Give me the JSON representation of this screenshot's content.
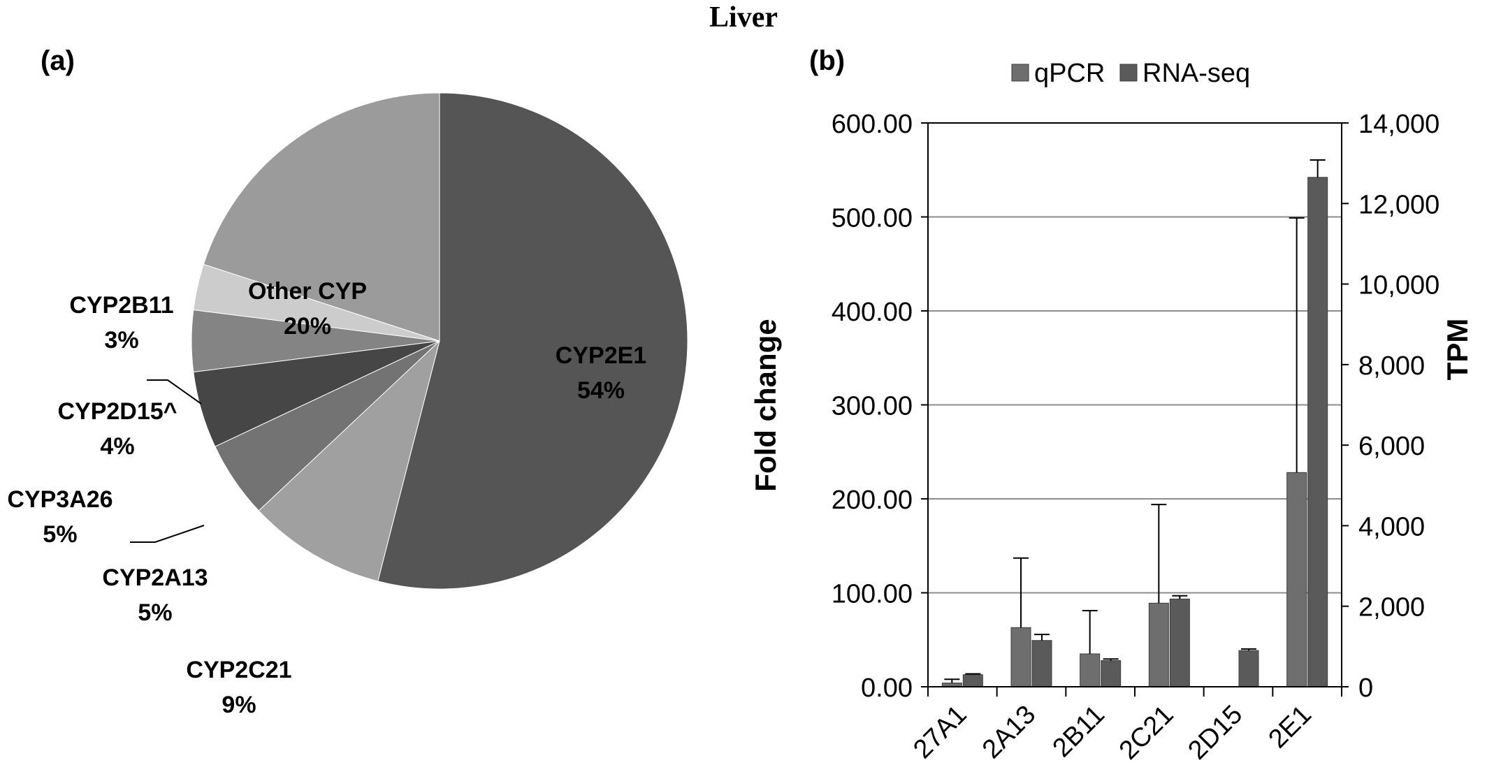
{
  "figure_title": "Liver",
  "panel_a_label": "(a)",
  "panel_b_label": "(b)",
  "chart_data": [
    {
      "type": "pie",
      "slices": [
        {
          "label": "CYP2E1",
          "pct_label": "54%",
          "value": 54,
          "color": "#555555"
        },
        {
          "label": "CYP2C21",
          "pct_label": "9%",
          "value": 9,
          "color": "#a0a0a0"
        },
        {
          "label": "CYP2A13",
          "pct_label": "5%",
          "value": 5,
          "color": "#737373"
        },
        {
          "label": "CYP3A26",
          "pct_label": "5%",
          "value": 5,
          "color": "#464646"
        },
        {
          "label": "CYP2D15^",
          "pct_label": "4%",
          "value": 4,
          "color": "#848484"
        },
        {
          "label": "CYP2B11",
          "pct_label": "3%",
          "value": 3,
          "color": "#cccccc"
        },
        {
          "label": "Other CYP",
          "pct_label": "20%",
          "value": 20,
          "color": "#9b9b9b"
        }
      ]
    },
    {
      "type": "bar",
      "categories": [
        "27A1",
        "2A13",
        "2B11",
        "2C21",
        "2D15",
        "2E1"
      ],
      "series": [
        {
          "name": "qPCR",
          "axis": "left",
          "color": "#6e6e6e",
          "values": [
            4,
            63,
            35,
            89,
            0,
            228
          ],
          "error_upper": [
            8,
            137,
            81,
            194,
            0,
            499
          ]
        },
        {
          "name": "RNA-seq",
          "axis": "right",
          "color": "#5a5a5a",
          "values": [
            300,
            1150,
            650,
            2180,
            900,
            12650
          ],
          "error_upper": [
            320,
            1300,
            690,
            2260,
            940,
            13080
          ]
        }
      ],
      "ylabel": "Fold change",
      "y2label": "TPM",
      "ylim": [
        0,
        600
      ],
      "y2lim": [
        0,
        14000
      ],
      "yticks": [
        "0.00",
        "100.00",
        "200.00",
        "300.00",
        "400.00",
        "500.00",
        "600.00"
      ],
      "y2ticks": [
        "0",
        "2,000",
        "4,000",
        "6,000",
        "8,000",
        "10,000",
        "12,000",
        "14,000"
      ],
      "grid": true,
      "legend": "top"
    }
  ]
}
